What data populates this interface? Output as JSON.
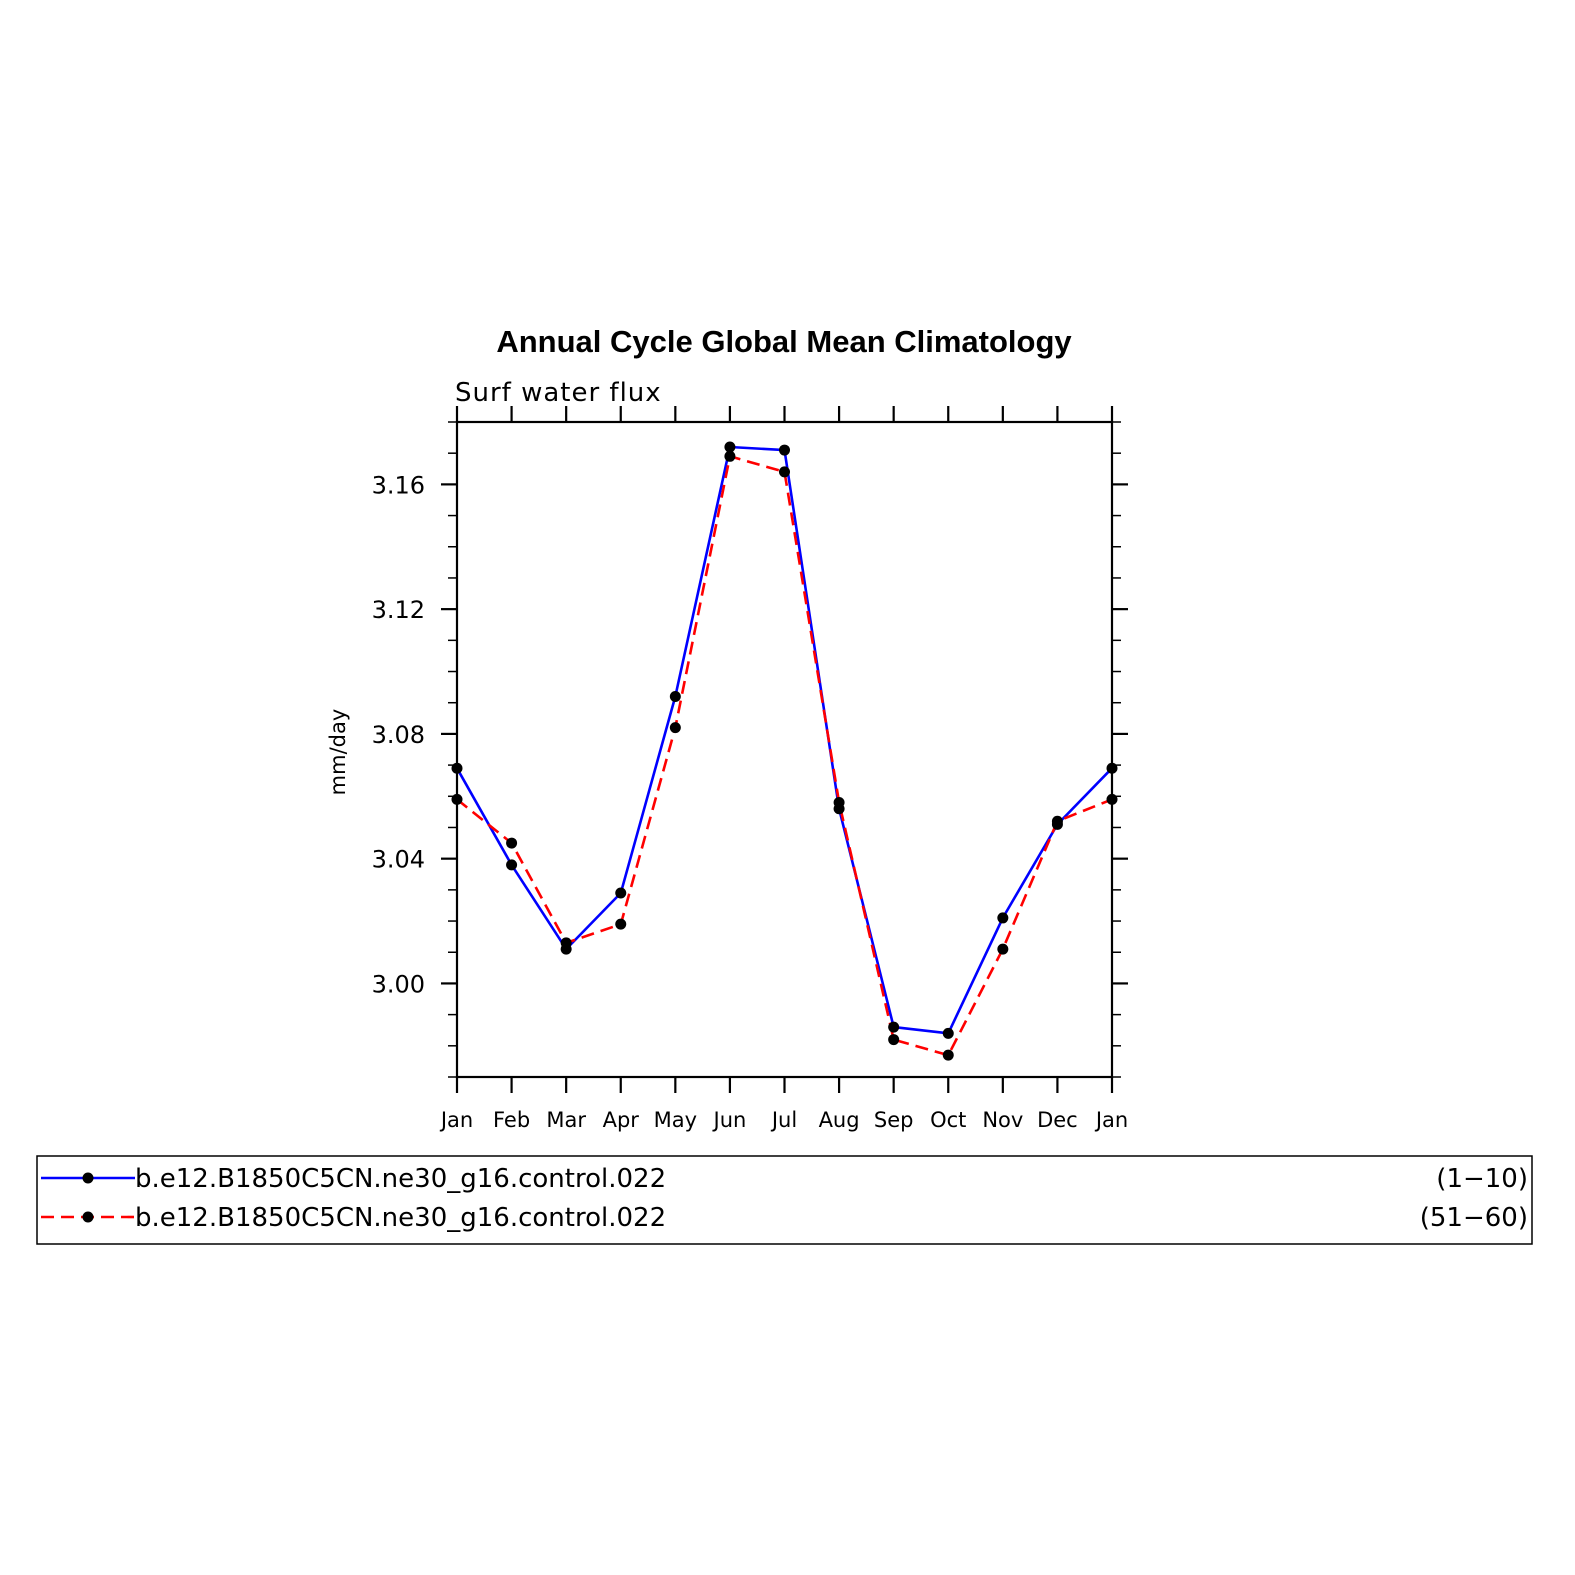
{
  "chart_data": {
    "type": "line",
    "title": "Annual Cycle Global Mean Climatology",
    "subtitle": "Surf water flux",
    "xlabel": "",
    "ylabel": "mm/day",
    "categories": [
      "Jan",
      "Feb",
      "Mar",
      "Apr",
      "May",
      "Jun",
      "Jul",
      "Aug",
      "Sep",
      "Oct",
      "Nov",
      "Dec",
      "Jan"
    ],
    "ylim": [
      2.97,
      3.18
    ],
    "yticks": [
      3.0,
      3.04,
      3.08,
      3.12,
      3.16
    ],
    "ytick_labels": [
      "3.00",
      "3.04",
      "3.08",
      "3.12",
      "3.16"
    ],
    "grid": false,
    "legend_position": "bottom",
    "series": [
      {
        "name": "b.e12.B1850C5CN.ne30_g16.control.022",
        "years": "(1−10)",
        "color": "#0000ff",
        "dash": "solid",
        "values": [
          3.069,
          3.038,
          3.011,
          3.029,
          3.092,
          3.172,
          3.171,
          3.056,
          2.986,
          2.984,
          3.021,
          3.051,
          3.069
        ]
      },
      {
        "name": "b.e12.B1850C5CN.ne30_g16.control.022",
        "years": "(51−60)",
        "color": "#ff0000",
        "dash": "dashed",
        "values": [
          3.059,
          3.045,
          3.013,
          3.019,
          3.082,
          3.169,
          3.164,
          3.058,
          2.982,
          2.977,
          3.011,
          3.052,
          3.059
        ]
      }
    ]
  }
}
